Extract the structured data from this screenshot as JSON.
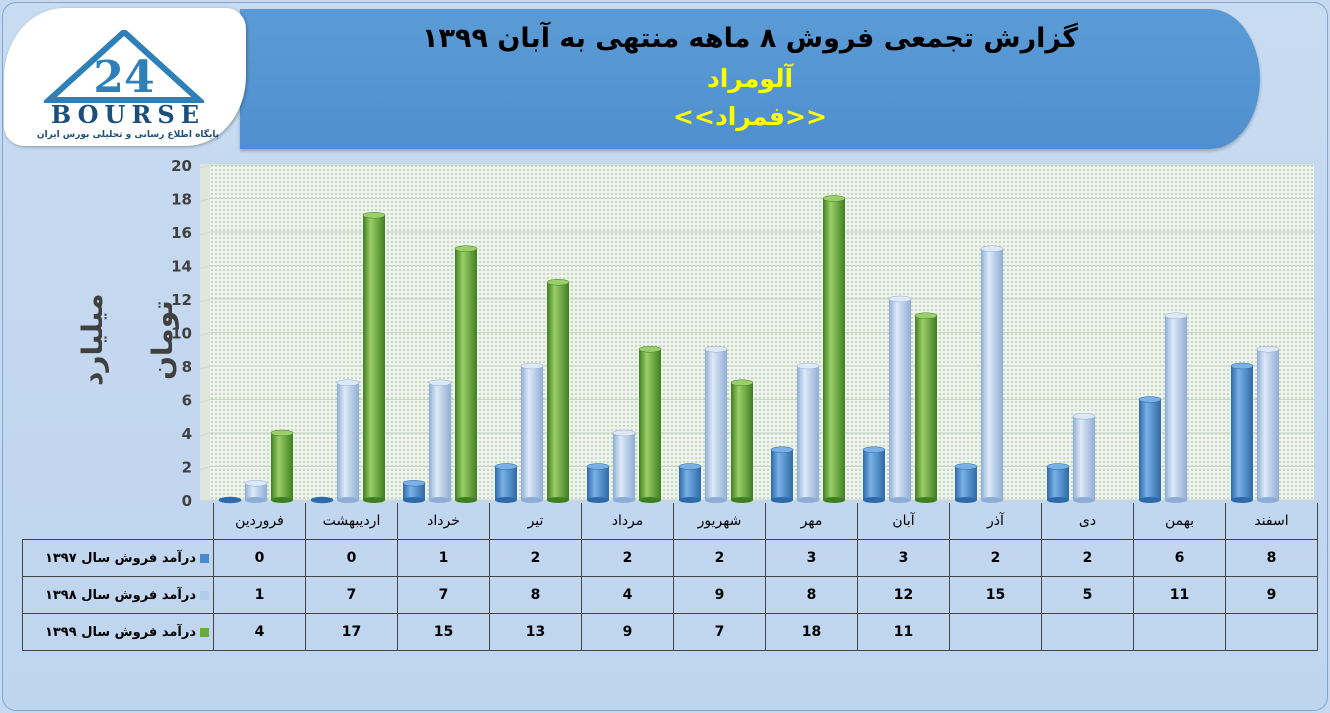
{
  "header": {
    "title": "گزارش تجمعی فروش ۸ ماهه منتهی به آبان ۱۳۹۹",
    "company": "آلومراد",
    "symbol": "<<فمراد>>"
  },
  "logo": {
    "brand": "BOURSE",
    "number": "24",
    "tagline": "پایگاه اطلاع رسانی و تحلیلی بورس ایران"
  },
  "colors": {
    "s1397": "#4a8ad0",
    "s1398": "#b4cceb",
    "s1399": "#6aaa3c",
    "banner": "#5b9bd5",
    "title_accent": "#ffff00"
  },
  "chart_data": {
    "type": "bar",
    "ylabel": "میلیارد تومان",
    "ylim": [
      0,
      20
    ],
    "yticks": [
      "0",
      "2",
      "4",
      "6",
      "8",
      "10",
      "12",
      "14",
      "16",
      "18",
      "20"
    ],
    "categories": [
      "فروردین",
      "اردیبهشت",
      "خرداد",
      "تیر",
      "مرداد",
      "شهریور",
      "مهر",
      "آبان",
      "آذر",
      "دی",
      "بهمن",
      "اسفند"
    ],
    "series": [
      {
        "name": "درآمد فروش سال ۱۳۹۷",
        "values": [
          0,
          0,
          1,
          2,
          2,
          2,
          3,
          3,
          2,
          2,
          6,
          8
        ]
      },
      {
        "name": "درآمد فروش سال ۱۳۹۸",
        "values": [
          1,
          7,
          7,
          8,
          4,
          9,
          8,
          12,
          15,
          5,
          11,
          9
        ]
      },
      {
        "name": "درآمد فروش سال ۱۳۹۹",
        "values": [
          4,
          17,
          15,
          13,
          9,
          7,
          18,
          11,
          null,
          null,
          null,
          null
        ]
      }
    ],
    "grid": true,
    "legend": "data-table"
  }
}
